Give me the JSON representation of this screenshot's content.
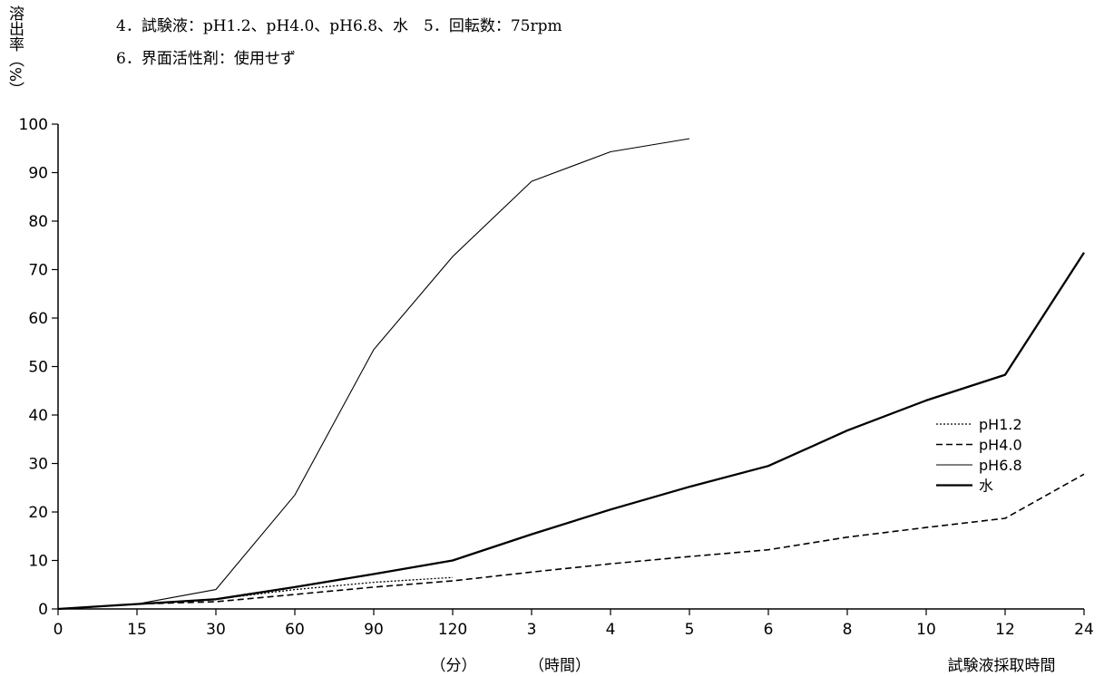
{
  "conditions": {
    "line1": "4．試験液：pH1.2、pH4.0、pH6.8、水　5．回転数：75rpm",
    "line2": "6．界面活性剤：使用せず"
  },
  "chart_data": {
    "type": "line",
    "title": "",
    "ylabel": "溶出率（%）",
    "xlabel": "試験液採取時間",
    "x_unit_labels": [
      "（分）",
      "（時間）"
    ],
    "categories": [
      "0",
      "15",
      "30",
      "60",
      "90",
      "120",
      "3",
      "4",
      "5",
      "6",
      "8",
      "10",
      "12",
      "24"
    ],
    "ylim": [
      0,
      100
    ],
    "yticks": [
      0,
      10,
      20,
      30,
      40,
      50,
      60,
      70,
      80,
      90,
      100
    ],
    "grid": false,
    "legend_position": "right",
    "series": [
      {
        "name": "pH1.2",
        "style": "dotted",
        "values": [
          0,
          1,
          2,
          4,
          5.5,
          6.5,
          null,
          null,
          null,
          null,
          null,
          null,
          null,
          null
        ]
      },
      {
        "name": "pH4.0",
        "style": "dashed",
        "values": [
          0,
          1,
          1.5,
          3,
          4.5,
          5.8,
          7.6,
          9.3,
          10.8,
          12.2,
          14.8,
          16.8,
          18.7,
          27.8
        ]
      },
      {
        "name": "pH6.8",
        "style": "thin-solid",
        "values": [
          0,
          1,
          4,
          23.5,
          53.5,
          72.7,
          88.2,
          94.3,
          97,
          null,
          null,
          null,
          null,
          null
        ]
      },
      {
        "name": "水",
        "style": "thick-solid",
        "values": [
          0,
          1,
          2,
          4.5,
          7.2,
          10,
          15.4,
          20.5,
          25.2,
          29.5,
          36.8,
          43,
          48.3,
          73.5
        ]
      }
    ]
  }
}
